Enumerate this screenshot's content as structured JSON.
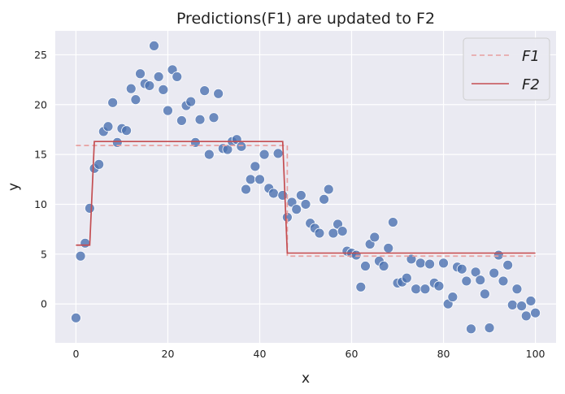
{
  "chart_data": {
    "type": "scatter",
    "title": "Predictions(F1) are updated to F2",
    "xlabel": "x",
    "ylabel": "y",
    "xlim": [
      -4.5,
      104.5
    ],
    "ylim": [
      -3.9,
      27.4
    ],
    "xticks": [
      0,
      20,
      40,
      60,
      80,
      100
    ],
    "yticks": [
      0,
      5,
      10,
      15,
      20,
      25
    ],
    "grid": true,
    "legend_position": "top-right",
    "colors": {
      "background": "#eaeaf2",
      "grid": "#ffffff",
      "points": "#4c72b0",
      "f1": "#e8a0a0",
      "f2": "#c44e52"
    },
    "points": {
      "x": [
        0,
        1,
        2,
        3,
        4,
        5,
        6,
        7,
        8,
        9,
        10,
        11,
        12,
        13,
        14,
        15,
        16,
        17,
        18,
        19,
        20,
        21,
        22,
        23,
        24,
        25,
        26,
        27,
        28,
        29,
        30,
        31,
        32,
        33,
        34,
        35,
        36,
        37,
        38,
        39,
        40,
        41,
        42,
        43,
        44,
        45,
        46,
        47,
        48,
        49,
        50,
        51,
        52,
        53,
        54,
        55,
        56,
        57,
        58,
        59,
        60,
        61,
        62,
        63,
        64,
        65,
        66,
        67,
        68,
        69,
        70,
        71,
        72,
        73,
        74,
        75,
        76,
        77,
        78,
        79,
        80,
        81,
        82,
        83,
        84,
        85,
        86,
        87,
        88,
        89,
        90,
        91,
        92,
        93,
        94,
        95,
        96,
        97,
        98,
        99,
        100
      ],
      "y": [
        -1.4,
        4.8,
        6.1,
        9.6,
        13.6,
        14.0,
        17.3,
        17.8,
        20.2,
        16.2,
        17.6,
        17.4,
        21.6,
        20.5,
        23.1,
        22.1,
        21.9,
        25.9,
        22.8,
        21.5,
        19.4,
        23.5,
        22.8,
        18.4,
        19.9,
        20.3,
        16.2,
        18.5,
        21.4,
        15.0,
        18.7,
        21.1,
        15.6,
        15.5,
        16.3,
        16.5,
        15.8,
        11.5,
        12.5,
        13.8,
        12.5,
        15.0,
        11.6,
        11.1,
        15.1,
        10.9,
        8.7,
        10.2,
        9.5,
        10.9,
        10.0,
        8.1,
        7.6,
        7.1,
        10.5,
        11.5,
        7.1,
        8.0,
        7.3,
        5.3,
        5.1,
        4.9,
        1.7,
        3.8,
        6.0,
        6.7,
        4.3,
        3.8,
        5.6,
        8.2,
        2.1,
        2.2,
        2.6,
        4.5,
        1.5,
        4.1,
        1.5,
        4.0,
        2.1,
        1.8,
        4.1,
        0.0,
        0.7,
        3.7,
        3.5,
        2.3,
        -2.5,
        3.2,
        2.4,
        1.0,
        -2.4,
        3.1,
        4.9,
        2.3,
        3.9,
        -0.1,
        1.5,
        -0.2,
        -1.2,
        0.3,
        -0.9
      ]
    },
    "series": [
      {
        "name": "F1",
        "style": "dashed",
        "x": [
          0,
          46,
          46,
          100
        ],
        "y": [
          15.9,
          15.9,
          4.8,
          4.8
        ]
      },
      {
        "name": "F2",
        "style": "solid",
        "x": [
          0,
          3,
          4,
          45,
          46,
          100
        ],
        "y": [
          5.9,
          5.9,
          16.3,
          16.3,
          5.1,
          5.1
        ]
      }
    ]
  }
}
